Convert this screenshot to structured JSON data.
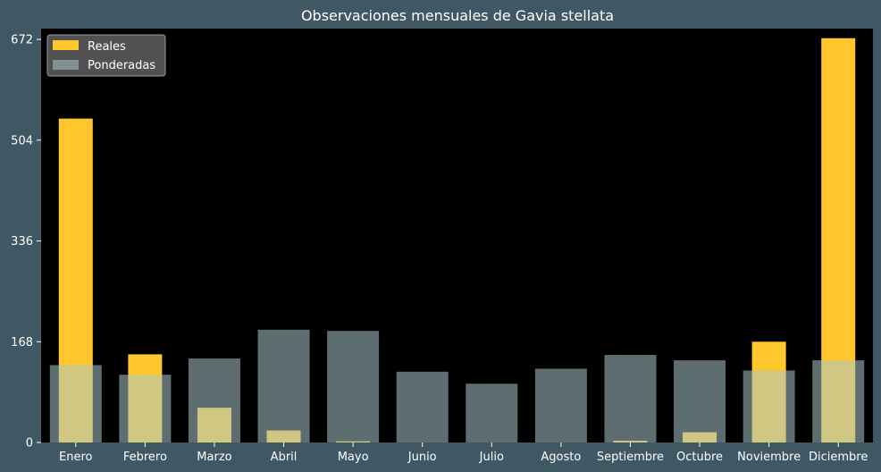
{
  "colors": {
    "background": "#3f5864",
    "plot_background": "#000000",
    "reales": "#ffc72c",
    "ponderadas": "#a9c6cc"
  },
  "chart_data": {
    "type": "bar",
    "title": "Observaciones mensuales de Gavia stellata",
    "xlabel": "",
    "ylabel": "",
    "categories": [
      "Enero",
      "Febrero",
      "Marzo",
      "Abril",
      "Mayo",
      "Junio",
      "Julio",
      "Agosto",
      "Septiembre",
      "Octubre",
      "Noviembre",
      "Diciembre"
    ],
    "yticks": [
      "0",
      "168",
      "336",
      "504",
      "672"
    ],
    "ylim": [
      0,
      690
    ],
    "grid": false,
    "legend_position": "top-left",
    "series": [
      {
        "name": "Reales",
        "color": "#ffc72c",
        "values": [
          540,
          147,
          58,
          20,
          2,
          0,
          0,
          0,
          3,
          17,
          168,
          674
        ]
      },
      {
        "name": "Ponderadas",
        "color": "#a9c6cc",
        "values": [
          129,
          113,
          140,
          188,
          186,
          118,
          98,
          123,
          146,
          137,
          120,
          137
        ]
      }
    ]
  }
}
